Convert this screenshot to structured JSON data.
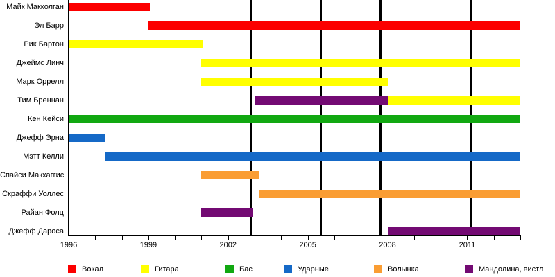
{
  "chart_data": {
    "type": "bar",
    "subtype": "timeline-gantt",
    "title": "",
    "x_axis": {
      "min": 1996,
      "max": 2013,
      "minor_tick_step": 1,
      "major_tick_years": [
        1996,
        1999,
        2002,
        2005,
        2008,
        2011
      ],
      "tick_labels": [
        "1996",
        "1999",
        "2002",
        "2005",
        "2008",
        "2011"
      ]
    },
    "grid": "off",
    "milestone_lines": [
      2002.85,
      2005.5,
      2007.73,
      2011.15
    ],
    "members": [
      {
        "name": "Майк Макколган",
        "segments": [
          {
            "role": "Вокал",
            "start": 1996,
            "end": 1999.05
          }
        ]
      },
      {
        "name": "Эл Барр",
        "segments": [
          {
            "role": "Вокал",
            "start": 1999,
            "end": 2013
          }
        ]
      },
      {
        "name": "Рик Бартон",
        "segments": [
          {
            "role": "Гитара",
            "start": 1996,
            "end": 2001.05
          }
        ]
      },
      {
        "name": "Джеймс Линч",
        "segments": [
          {
            "role": "Гитара",
            "start": 2001,
            "end": 2013
          }
        ]
      },
      {
        "name": "Марк Оррелл",
        "segments": [
          {
            "role": "Гитара",
            "start": 2001,
            "end": 2008.05
          }
        ]
      },
      {
        "name": "Тим Бреннан",
        "segments": [
          {
            "role": "Мандолина, вистл",
            "start": 2003,
            "end": 2008
          },
          {
            "role": "Гитара",
            "start": 2008,
            "end": 2013
          }
        ]
      },
      {
        "name": "Кен Кейси",
        "segments": [
          {
            "role": "Бас",
            "start": 1996,
            "end": 2013
          }
        ]
      },
      {
        "name": "Джефф Эрна",
        "segments": [
          {
            "role": "Ударные",
            "start": 1996,
            "end": 1997.37
          }
        ]
      },
      {
        "name": "Мэтт Келли",
        "segments": [
          {
            "role": "Ударные",
            "start": 1997.35,
            "end": 2013
          }
        ]
      },
      {
        "name": "Спайси Макхаггис",
        "segments": [
          {
            "role": "Волынка",
            "start": 2001,
            "end": 2003.17
          }
        ]
      },
      {
        "name": "Скраффи Уоллес",
        "segments": [
          {
            "role": "Волынка",
            "start": 2003.17,
            "end": 2013
          }
        ]
      },
      {
        "name": "Райан Фолц",
        "segments": [
          {
            "role": "Мандолина, вистл",
            "start": 2001,
            "end": 2002.95
          }
        ]
      },
      {
        "name": "Джефф Дароса",
        "segments": [
          {
            "role": "Мандолина, вистл",
            "start": 2008,
            "end": 2013
          }
        ]
      }
    ],
    "legend": [
      {
        "label": "Вокал",
        "color": "#fc0000"
      },
      {
        "label": "Гитара",
        "color": "#ffff00"
      },
      {
        "label": "Бас",
        "color": "#11a811"
      },
      {
        "label": "Ударные",
        "color": "#1569c7"
      },
      {
        "label": "Волынка",
        "color": "#fa9d33"
      },
      {
        "label": "Мандолина, вистл",
        "color": "#730a73"
      }
    ],
    "legend_position": "bottom",
    "colors": {
      "axis": "#000000",
      "milestone_line": "#000000",
      "background": "#ffffff"
    }
  }
}
